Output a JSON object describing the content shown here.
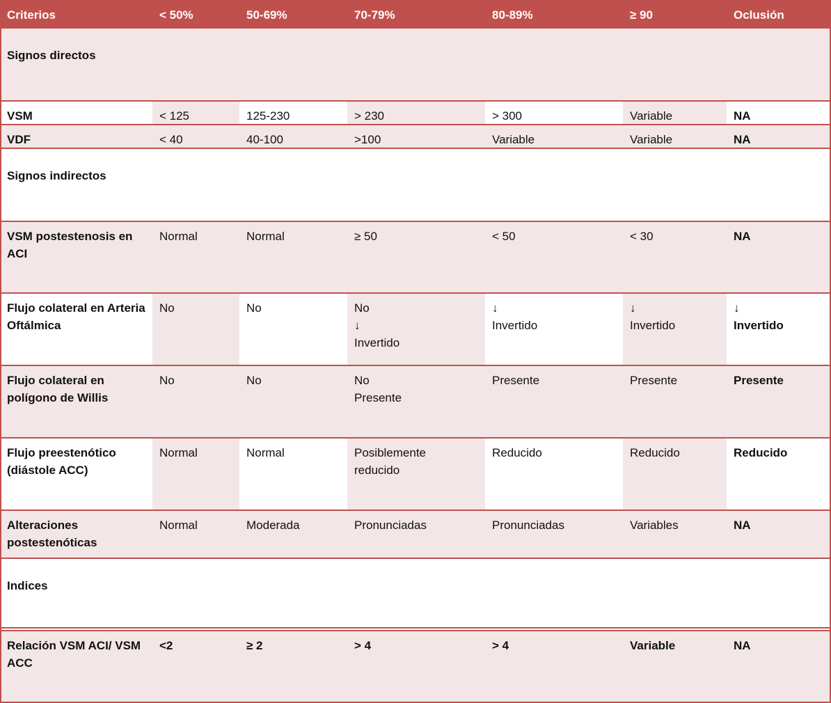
{
  "colors": {
    "header_bg": "#c0504d",
    "band_shade": "#f2e6e6",
    "row_line": "#c0504d",
    "header_text": "#ffffff"
  },
  "columns": [
    "Criterios",
    "< 50%",
    "50-69%",
    "70-79%",
    "80-89%",
    "≥ 90",
    "Oclusión"
  ],
  "rows": [
    {
      "kind": "section",
      "label": "Signos directos"
    },
    {
      "kind": "data",
      "label": "VSM",
      "values": [
        "< 125",
        "125-230",
        "> 230",
        "> 300",
        "Variable",
        "NA"
      ],
      "bold_cols": [
        5
      ]
    },
    {
      "kind": "data",
      "label": "VDF",
      "values": [
        "< 40",
        "40-100",
        ">100",
        "Variable",
        "Variable",
        "NA"
      ],
      "bold_cols": [
        5
      ]
    },
    {
      "kind": "section",
      "label": "Signos indirectos"
    },
    {
      "kind": "data",
      "label": "VSM postestenosis en ACI",
      "values": [
        "Normal",
        "Normal",
        "≥ 50",
        "< 50",
        "< 30",
        "NA"
      ],
      "bold_cols": [
        5
      ]
    },
    {
      "kind": "data",
      "label": "Flujo colateral en Arteria Oftálmica",
      "values": [
        "No",
        "No",
        "No\n↓\nInvertido",
        "↓\nInvertido",
        "↓\nInvertido",
        "↓\nInvertido"
      ],
      "bold_cols": [
        5
      ]
    },
    {
      "kind": "data",
      "label": "Flujo colateral en polígono de Willis",
      "values": [
        "No",
        "No",
        "No\nPresente",
        "Presente",
        "Presente",
        "Presente"
      ],
      "bold_cols": [
        5
      ]
    },
    {
      "kind": "data",
      "label": "Flujo preestenótico (diástole ACC)",
      "values": [
        "Normal",
        "Normal",
        "Posiblemente\nreducido",
        "Reducido",
        "Reducido",
        "Reducido"
      ],
      "bold_cols": [
        5
      ]
    },
    {
      "kind": "data",
      "label": "Alteraciones postestenóticas",
      "values": [
        "Normal",
        "Moderada",
        "Pronunciadas",
        "Pronunciadas",
        "Variables",
        "NA"
      ],
      "bold_cols": [
        5
      ]
    },
    {
      "kind": "section",
      "label": "Indices"
    },
    {
      "kind": "data",
      "label": "Relación VSM ACI/ VSM ACC",
      "values": [
        "<2",
        "≥ 2",
        "> 4",
        "> 4",
        "Variable",
        "NA"
      ],
      "bold_cols": [
        0,
        1,
        2,
        3,
        4,
        5
      ]
    }
  ]
}
